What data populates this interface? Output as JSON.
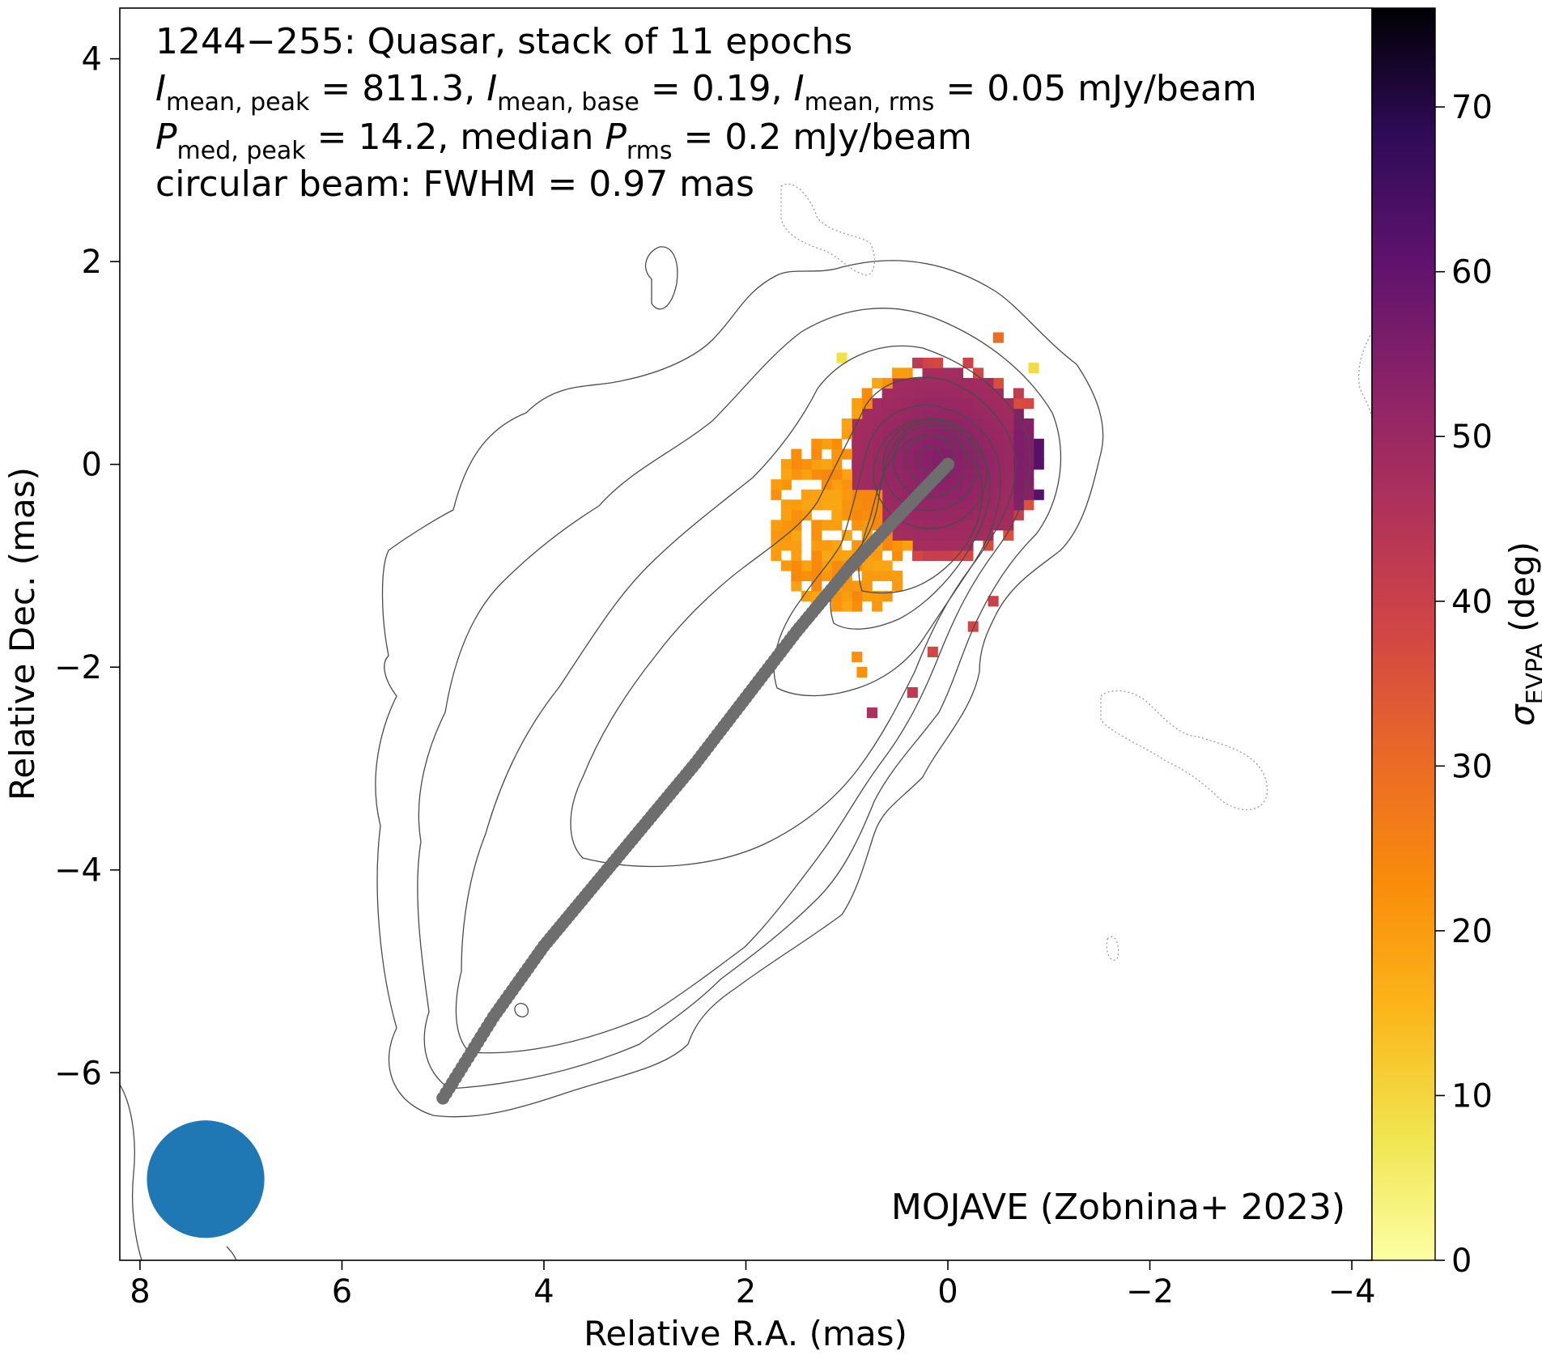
{
  "chart_data": {
    "type": "heatmap",
    "title_lines": [
      [
        {
          "t": "1244−255: Quasar, stack of 11 epochs"
        }
      ],
      [
        {
          "t": "I",
          "i": true
        },
        {
          "t": "mean, peak",
          "sub": true
        },
        {
          "t": " = 811.3, "
        },
        {
          "t": "I",
          "i": true
        },
        {
          "t": "mean, base",
          "sub": true
        },
        {
          "t": " = 0.19, "
        },
        {
          "t": "I",
          "i": true
        },
        {
          "t": "mean, rms",
          "sub": true
        },
        {
          "t": " = 0.05 mJy/beam"
        }
      ],
      [
        {
          "t": "P",
          "i": true
        },
        {
          "t": "med, peak",
          "sub": true
        },
        {
          "t": " = 14.2, median "
        },
        {
          "t": "P",
          "i": true
        },
        {
          "t": "rms",
          "sub": true
        },
        {
          "t": " = 0.2 mJy/beam"
        }
      ],
      [
        {
          "t": "circular beam: FWHM = 0.97 mas"
        }
      ]
    ],
    "credit": "MOJAVE (Zobnina+ 2023)",
    "xlabel": "Relative R.A. (mas)",
    "ylabel": "Relative Dec. (mas)",
    "xlim": [
      8.2,
      -4.2
    ],
    "ylim": [
      -7.85,
      4.5
    ],
    "xticks": [
      8,
      6,
      4,
      2,
      0,
      -2,
      -4
    ],
    "yticks": [
      4,
      2,
      0,
      -2,
      -4,
      -6
    ],
    "tick_labels_x": [
      "8",
      "6",
      "4",
      "2",
      "0",
      "−2",
      "−4"
    ],
    "tick_labels_y": [
      "4",
      "2",
      "0",
      "−2",
      "−4",
      "−6"
    ],
    "colorbar": {
      "label": [
        {
          "t": "σ",
          "i": true
        },
        {
          "t": "EVPA",
          "sub": true
        },
        {
          "t": " (deg)"
        }
      ],
      "range": [
        0,
        76
      ],
      "ticks": [
        0,
        10,
        20,
        30,
        40,
        50,
        60,
        70
      ],
      "tick_labels": [
        "0",
        "10",
        "20",
        "30",
        "40",
        "50",
        "60",
        "70"
      ],
      "colormap": "inferno_r"
    },
    "beam": {
      "center": [
        7.35,
        -7.05
      ],
      "fwhm_mas": 0.97,
      "color": "#1f77b4"
    },
    "ridgeline": {
      "color": "#6e6e6e",
      "points": [
        [
          0.0,
          0.0
        ],
        [
          0.5,
          -0.52
        ],
        [
          1.0,
          -1.05
        ],
        [
          1.5,
          -1.65
        ],
        [
          2.0,
          -2.3
        ],
        [
          2.5,
          -2.95
        ],
        [
          3.0,
          -3.55
        ],
        [
          3.5,
          -4.15
        ],
        [
          4.0,
          -4.75
        ],
        [
          4.5,
          -5.45
        ],
        [
          5.0,
          -6.25
        ]
      ]
    },
    "core_model": {
      "center": [
        0.05,
        0.05
      ],
      "radius": 1.05,
      "peak_deg": 55,
      "edge_deg": 38,
      "east_lobe_deg": 20,
      "west_edge_deg": 62
    }
  }
}
